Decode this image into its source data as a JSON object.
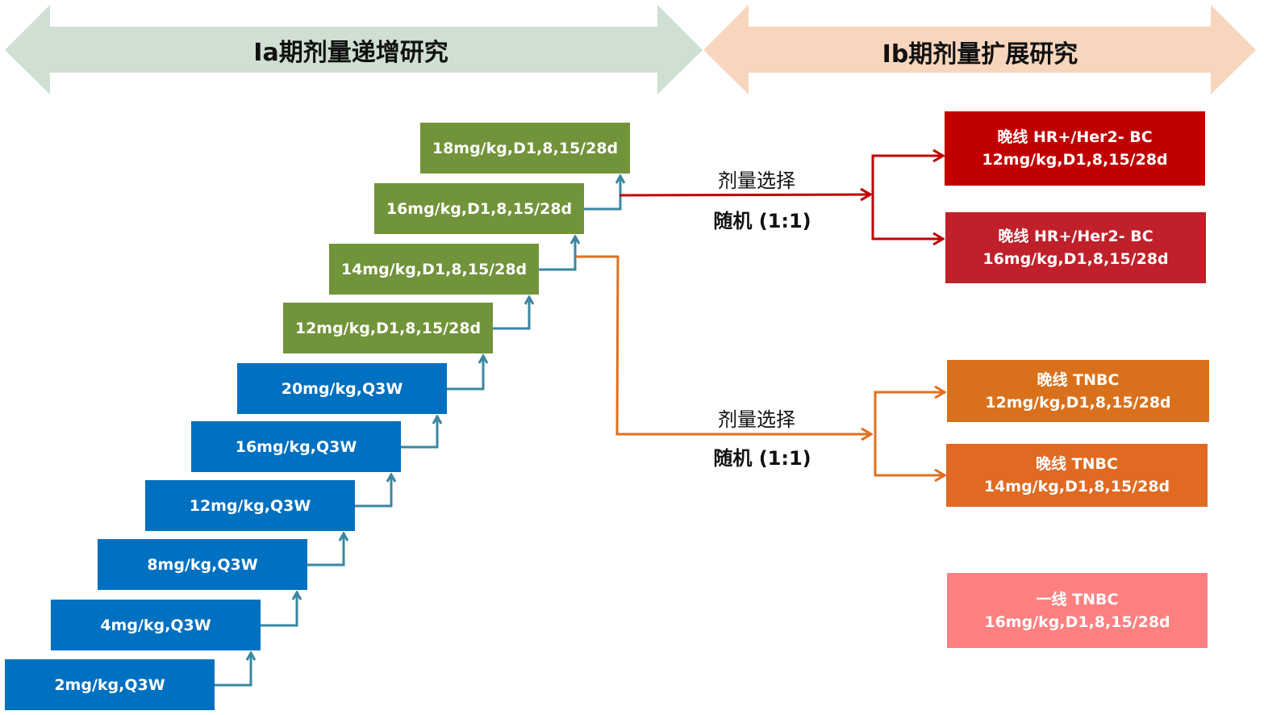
{
  "banners": {
    "left": "Ia期剂量递增研究",
    "right": "Ib期剂量扩展研究"
  },
  "colors": {
    "left_banner": "#cfe0d3",
    "right_banner": "#f8d6bd",
    "green": "#71933a",
    "blue": "#0070c0",
    "connector": "#3a87a0",
    "red": "#c00000",
    "orange": "#d9711c",
    "pink": "#ff8080"
  },
  "escalation_steps": [
    {
      "label": "2mg/kg,Q3W",
      "color": "#0070c0"
    },
    {
      "label": "4mg/kg,Q3W",
      "color": "#0070c0"
    },
    {
      "label": "8mg/kg,Q3W",
      "color": "#0070c0"
    },
    {
      "label": "12mg/kg,Q3W",
      "color": "#0070c0"
    },
    {
      "label": "16mg/kg,Q3W",
      "color": "#0070c0"
    },
    {
      "label": "20mg/kg,Q3W",
      "color": "#0070c0"
    },
    {
      "label": "12mg/kg,D1,8,15/28d",
      "color": "#71933a"
    },
    {
      "label": "14mg/kg,D1,8,15/28d",
      "color": "#71933a"
    },
    {
      "label": "16mg/kg,D1,8,15/28d",
      "color": "#71933a"
    },
    {
      "label": "18mg/kg,D1,8,15/28d",
      "color": "#71933a"
    }
  ],
  "branches": [
    {
      "top": "剂量选择",
      "bottom": "随机 (1:1)"
    },
    {
      "top": "剂量选择",
      "bottom": "随机 (1:1)"
    }
  ],
  "expansion_cohorts": [
    {
      "line1": "晚线 HR+/Her2- BC",
      "line2": "12mg/kg,D1,8,15/28d",
      "color": "#c00000"
    },
    {
      "line1": "晚线 HR+/Her2- BC",
      "line2": "16mg/kg,D1,8,15/28d",
      "color": "#c0202a"
    },
    {
      "line1": "晚线 TNBC",
      "line2": "12mg/kg,D1,8,15/28d",
      "color": "#d9711c"
    },
    {
      "line1": "晚线 TNBC",
      "line2": "14mg/kg,D1,8,15/28d",
      "color": "#e06a22"
    },
    {
      "line1": "一线 TNBC",
      "line2": "16mg/kg,D1,8,15/28d",
      "color": "#ff8080"
    }
  ]
}
